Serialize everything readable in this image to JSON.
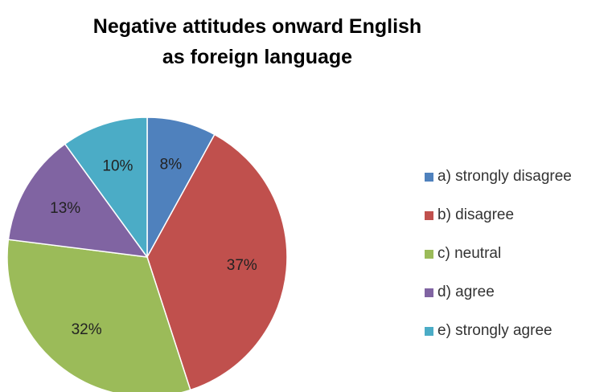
{
  "chart_data": {
    "type": "pie",
    "title_lines": [
      "Negative attitudes onward English",
      "as foreign language"
    ],
    "categories": [
      "a) strongly disagree",
      "b) disagree",
      "c) neutral",
      "d) agree",
      "e) strongly agree"
    ],
    "values": [
      8,
      37,
      32,
      13,
      10
    ],
    "labels": [
      "8%",
      "37%",
      "32%",
      "13%",
      "10%"
    ],
    "colors": [
      "#4F81BD",
      "#C0504D",
      "#9BBB59",
      "#8064A2",
      "#4BACC6"
    ],
    "legend_position": "right"
  }
}
